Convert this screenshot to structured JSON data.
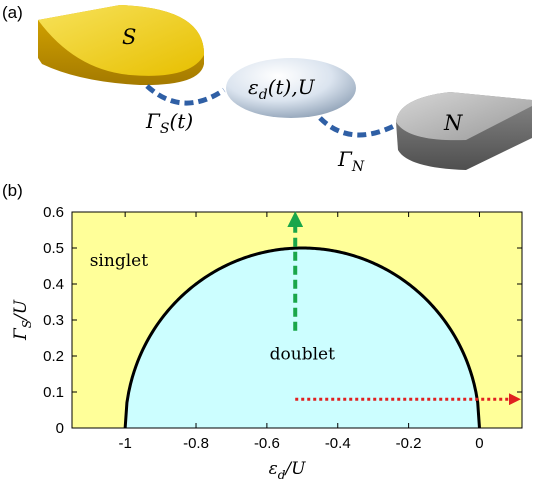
{
  "panel_a": {
    "label": "(a)",
    "superconductor_label": "S",
    "dot_label": "ε_d(t),U",
    "normal_label": "N",
    "coupling_s_label": "Γ_S(t)",
    "coupling_n_label": "Γ_N",
    "colors": {
      "superconductor": "#f0d21a",
      "dot": "#c8d6e8",
      "normal": "#8e8e8e",
      "link": "#2f5fa5"
    }
  },
  "panel_b": {
    "label": "(b)"
  },
  "chart_data": {
    "type": "area",
    "xlabel": "ε_d/U",
    "ylabel": "Γ_S/U",
    "xlim": [
      -1.15,
      0.12
    ],
    "ylim": [
      0,
      0.6
    ],
    "x_ticks": [
      -1,
      -0.8,
      -0.6,
      -0.4,
      -0.2,
      0
    ],
    "x_tick_labels": [
      "-1",
      "-0.8",
      "-0.6",
      "-0.4",
      "-0.2",
      "0"
    ],
    "y_ticks": [
      0,
      0.1,
      0.2,
      0.3,
      0.4,
      0.5,
      0.6
    ],
    "y_tick_labels": [
      "0",
      "0.1",
      "0.2",
      "0.3",
      "0.4",
      "0.5",
      "0.6"
    ],
    "grid": false,
    "regions": [
      {
        "name": "singlet",
        "color": "#ffff99"
      },
      {
        "name": "doublet",
        "color": "#ccfeff"
      }
    ],
    "boundary": {
      "description": "Γ_S/U = sqrt(-ε_d/U · (1 + ε_d/U))",
      "x": [
        -1,
        -0.99,
        -0.95,
        -0.9,
        -0.8,
        -0.7,
        -0.6,
        -0.5,
        -0.4,
        -0.3,
        -0.2,
        -0.1,
        -0.05,
        -0.01,
        0
      ],
      "y": [
        0,
        0.099,
        0.218,
        0.3,
        0.4,
        0.458,
        0.49,
        0.5,
        0.49,
        0.458,
        0.4,
        0.3,
        0.218,
        0.099,
        0
      ],
      "color": "#000000"
    },
    "arrows": [
      {
        "name": "vertical-sweep",
        "color": "#1aa64a",
        "style": "dashed",
        "from": [
          -0.52,
          0.27
        ],
        "to": [
          -0.52,
          0.58
        ]
      },
      {
        "name": "horizontal-sweep",
        "color": "#e02020",
        "style": "dotted",
        "from": [
          -0.52,
          0.08
        ],
        "to": [
          0.1,
          0.08
        ]
      }
    ]
  }
}
